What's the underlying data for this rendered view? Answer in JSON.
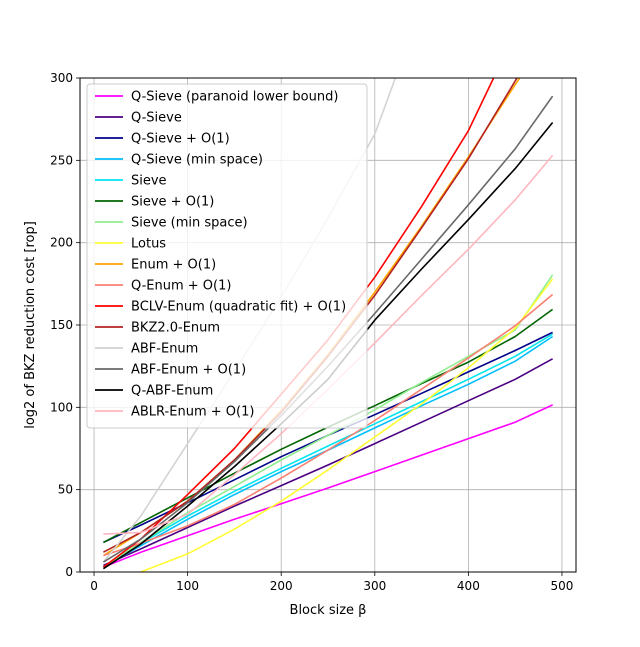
{
  "chart_data": {
    "type": "line",
    "title": "",
    "xlabel": "Block size β",
    "ylabel": "log2 of BKZ reduction cost [rop]",
    "xlim": [
      -15,
      515
    ],
    "ylim": [
      0,
      300
    ],
    "xticks": [
      0,
      100,
      200,
      300,
      400,
      500
    ],
    "yticks": [
      0,
      50,
      100,
      150,
      200,
      250,
      300
    ],
    "grid": true,
    "legend_position": "top-left",
    "series": [
      {
        "name": "Q-Sieve (paranoid lower bound)",
        "color": "#ff00ff",
        "x": [
          10,
          50,
          100,
          150,
          200,
          250,
          300,
          350,
          400,
          450,
          490
        ],
        "y": [
          3,
          12,
          22,
          32,
          41.5,
          51,
          61,
          71,
          81,
          91,
          101.5
        ]
      },
      {
        "name": "Q-Sieve",
        "color": "#4b0082",
        "x": [
          10,
          50,
          100,
          150,
          200,
          250,
          300,
          350,
          400,
          450,
          490
        ],
        "y": [
          4,
          14,
          27,
          40,
          52.5,
          65,
          78,
          91,
          104,
          117,
          129.5
        ]
      },
      {
        "name": "Q-Sieve + O(1)",
        "color": "#00008b",
        "x": [
          10,
          50,
          100,
          150,
          200,
          250,
          300,
          350,
          400,
          450,
          490
        ],
        "y": [
          18,
          28.5,
          42,
          56,
          70,
          83,
          95.5,
          108.5,
          121.5,
          134.5,
          145.5
        ]
      },
      {
        "name": "Q-Sieve (min space)",
        "color": "#00bfff",
        "x": [
          10,
          50,
          100,
          150,
          200,
          250,
          300,
          350,
          400,
          450,
          490
        ],
        "y": [
          3,
          16,
          32,
          47,
          61,
          74,
          87.5,
          101,
          114,
          128,
          143
        ]
      },
      {
        "name": "Sieve",
        "color": "#00e5ee",
        "x": [
          10,
          50,
          100,
          150,
          200,
          250,
          300,
          350,
          400,
          450,
          490
        ],
        "y": [
          3,
          17.5,
          34,
          49,
          63,
          76.5,
          90,
          103.5,
          117,
          131,
          144.5
        ]
      },
      {
        "name": "Sieve + O(1)",
        "color": "#006400",
        "x": [
          10,
          50,
          100,
          150,
          200,
          250,
          300,
          350,
          400,
          450,
          490
        ],
        "y": [
          18,
          30,
          45,
          60,
          74.5,
          88,
          101,
          114.5,
          127.5,
          143,
          159.5
        ]
      },
      {
        "name": "Sieve (min space)",
        "color": "#90ee90",
        "x": [
          10,
          50,
          100,
          150,
          200,
          250,
          300,
          350,
          400,
          450,
          490
        ],
        "y": [
          3,
          18,
          36,
          52,
          68,
          83,
          98.5,
          115,
          131,
          147,
          180.5
        ]
      },
      {
        "name": "Lotus",
        "color": "#ffff33",
        "x": [
          50,
          100,
          150,
          200,
          250,
          300,
          350,
          400,
          450,
          490
        ],
        "y": [
          0,
          11,
          26,
          43,
          62,
          82,
          102,
          124,
          148,
          178
        ]
      },
      {
        "name": "Enum + O(1)",
        "color": "#ffa500",
        "x": [
          10,
          50,
          100,
          150,
          200,
          250,
          300,
          350,
          400,
          450,
          455
        ],
        "y": [
          10,
          24,
          43,
          68,
          98,
          132,
          170,
          210,
          252,
          296,
          300
        ]
      },
      {
        "name": "Q-Enum + O(1)",
        "color": "#fa8072",
        "x": [
          10,
          50,
          100,
          150,
          200,
          250,
          300,
          350,
          400,
          450,
          490
        ],
        "y": [
          10,
          17.5,
          28,
          41,
          57,
          74,
          92,
          111,
          130,
          149.5,
          168.5
        ]
      },
      {
        "name": "BCLV-Enum (quadratic fit) + O(1)",
        "color": "#ff0000",
        "x": [
          10,
          50,
          100,
          150,
          200,
          250,
          300,
          350,
          400,
          427
        ],
        "y": [
          3,
          20,
          47,
          75,
          108,
          141,
          179,
          222,
          268,
          300
        ]
      },
      {
        "name": "BKZ2.0-Enum",
        "color": "#b22222",
        "x": [
          10,
          50,
          100,
          150,
          200,
          250,
          300,
          350,
          400,
          452
        ],
        "y": [
          12,
          24,
          43,
          68,
          97,
          131,
          168,
          209,
          251,
          300
        ]
      },
      {
        "name": "ABF-Enum",
        "color": "#d3d3d3",
        "x": [
          10,
          50,
          100,
          150,
          200,
          250,
          300,
          322
        ],
        "y": [
          6,
          34,
          78,
          122,
          167,
          215,
          266,
          300
        ]
      },
      {
        "name": "ABF-Enum + O(1)",
        "color": "#696969",
        "x": [
          10,
          50,
          100,
          150,
          200,
          250,
          300,
          350,
          400,
          450,
          490
        ],
        "y": [
          6,
          20,
          42,
          67,
          95,
          125,
          157,
          190,
          223,
          257,
          289
        ]
      },
      {
        "name": "Q-ABF-Enum",
        "color": "#000000",
        "x": [
          10,
          50,
          100,
          150,
          200,
          250,
          300,
          350,
          400,
          450,
          490
        ],
        "y": [
          2,
          17,
          40,
          64,
          90,
          117,
          153,
          184,
          214,
          245,
          273
        ]
      },
      {
        "name": "ABLR-Enum + O(1)",
        "color": "#ffb6c1",
        "x": [
          10,
          50,
          100,
          150,
          200,
          250,
          300,
          350,
          400,
          450,
          490
        ],
        "y": [
          23,
          24,
          35,
          59,
          84,
          111,
          139,
          168,
          196,
          226,
          253
        ]
      }
    ]
  }
}
